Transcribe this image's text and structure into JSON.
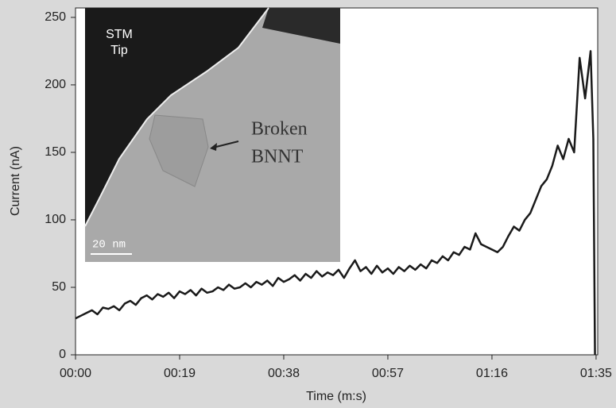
{
  "chart_data": {
    "type": "line",
    "x_label": "Time (m:s)",
    "y_label": "Current (nA)",
    "annotations": [
      "STM",
      "Tip",
      "Broken",
      "BNNT",
      "20 nm"
    ],
    "x": [
      0,
      1,
      2,
      3,
      4,
      5,
      6,
      7,
      8,
      9,
      10,
      11,
      12,
      13,
      14,
      15,
      16,
      17,
      18,
      19,
      20,
      21,
      22,
      23,
      24,
      25,
      26,
      27,
      28,
      29,
      30,
      31,
      32,
      33,
      34,
      35,
      36,
      37,
      38,
      39,
      40,
      41,
      42,
      43,
      44,
      45,
      46,
      47,
      48,
      49,
      50,
      51,
      52,
      53,
      54,
      55,
      56,
      57,
      58,
      59,
      60,
      61,
      62,
      63,
      64,
      65,
      66,
      67,
      68,
      69,
      70,
      71,
      72,
      73,
      74,
      75,
      76,
      77,
      78,
      79,
      80,
      81,
      82,
      83,
      84,
      85,
      86,
      87,
      88,
      89,
      90,
      91,
      92,
      93,
      94,
      94.5,
      94.8
    ],
    "values": [
      27,
      29,
      31,
      33,
      30,
      35,
      34,
      36,
      33,
      38,
      40,
      37,
      42,
      44,
      41,
      45,
      43,
      46,
      42,
      47,
      45,
      48,
      44,
      49,
      46,
      47,
      50,
      48,
      52,
      49,
      50,
      53,
      50,
      54,
      52,
      55,
      51,
      57,
      54,
      56,
      59,
      55,
      60,
      57,
      62,
      58,
      61,
      59,
      63,
      57,
      64,
      70,
      62,
      65,
      60,
      66,
      61,
      64,
      60,
      65,
      62,
      66,
      63,
      67,
      64,
      70,
      68,
      73,
      70,
      76,
      74,
      80,
      78,
      90,
      82,
      80,
      78,
      76,
      80,
      88,
      95,
      92,
      100,
      105,
      115,
      125,
      130,
      140,
      155,
      145,
      160,
      150,
      220,
      190,
      225,
      160,
      0
    ],
    "color": "#1a1a1a",
    "xlim": [
      0,
      95.3
    ],
    "ylim": [
      0,
      257
    ],
    "xticks": [
      {
        "value": 0,
        "label": "00:00"
      },
      {
        "value": 19,
        "label": "00:19"
      },
      {
        "value": 38,
        "label": "00:38"
      },
      {
        "value": 57,
        "label": "00:57"
      },
      {
        "value": 76,
        "label": "01:16"
      },
      {
        "value": 95,
        "label": "01:35"
      }
    ],
    "yticks": [
      0,
      50,
      100,
      150,
      200,
      250
    ],
    "grid": false
  }
}
